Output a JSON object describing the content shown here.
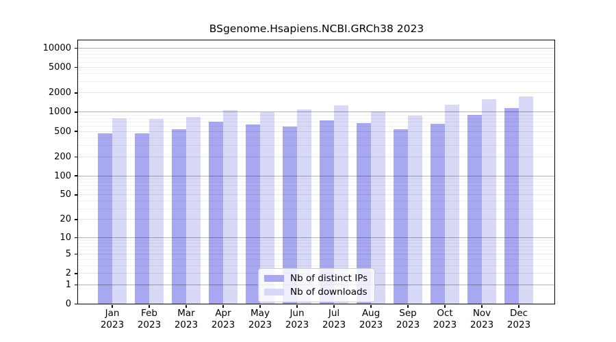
{
  "chart_data": {
    "type": "bar",
    "title": "BSgenome.Hsapiens.NCBI.GRCh38 2023",
    "x_tick_months": [
      "Jan",
      "Feb",
      "Mar",
      "Apr",
      "May",
      "Jun",
      "Jul",
      "Aug",
      "Sep",
      "Oct",
      "Nov",
      "Dec"
    ],
    "x_tick_year": "2023",
    "series": [
      {
        "name": "Nb of distinct IPs",
        "color": "#a8a8f0",
        "values": [
          465,
          460,
          530,
          695,
          640,
          590,
          730,
          665,
          530,
          650,
          905,
          1140
        ]
      },
      {
        "name": "Nb of downloads",
        "color": "#d8d8f7",
        "values": [
          800,
          780,
          830,
          1070,
          990,
          1090,
          1265,
          1005,
          870,
          1280,
          1580,
          1740
        ]
      }
    ],
    "y_axis": {
      "scale": "log10(1+x)",
      "tick_values": [
        0,
        1,
        2,
        5,
        10,
        20,
        50,
        100,
        200,
        500,
        1000,
        2000,
        5000,
        10000
      ],
      "top_value": 13000
    },
    "legend": {
      "position": "lower center",
      "entries": [
        "Nb of distinct IPs",
        "Nb of downloads"
      ]
    },
    "grid": {
      "horizontal_major": true,
      "horizontal_minor": true
    }
  }
}
